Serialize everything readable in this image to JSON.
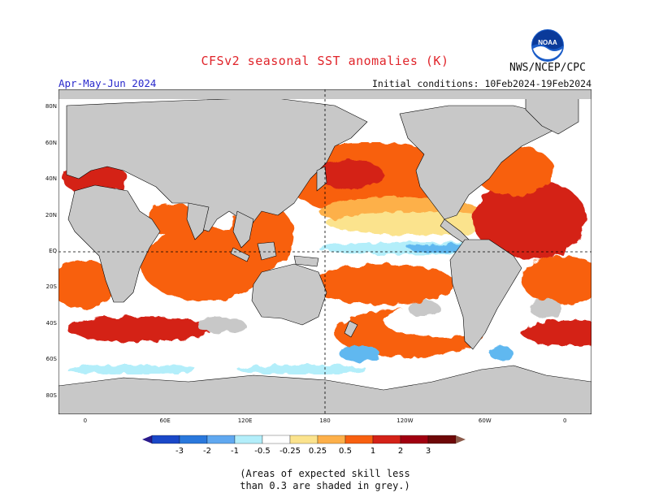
{
  "header": {
    "title": "CFSv2 seasonal SST anomalies (K)",
    "agency": "NWS/NCEP/CPC",
    "logo_text": "NOAA",
    "period": "Apr-May-Jun 2024",
    "initial_conditions": "Initial conditions: 10Feb2024-19Feb2024"
  },
  "map": {
    "lat_labels": [
      "80N",
      "60N",
      "40N",
      "20N",
      "EQ",
      "20S",
      "40S",
      "60S",
      "80S"
    ],
    "lon_labels": [
      "0",
      "60E",
      "120E",
      "180",
      "120W",
      "60W",
      "0"
    ],
    "lat_values": [
      80,
      60,
      40,
      20,
      0,
      -20,
      -40,
      -60,
      -80
    ],
    "lon_values": [
      0,
      60,
      120,
      180,
      240,
      300,
      360
    ],
    "lon_range": [
      -20,
      380
    ],
    "lat_range": [
      -90,
      90
    ],
    "colors": {
      "land": "#c8c8c8",
      "ocean_neutral": "#ffffff",
      "warm_weak": "#fbe38d",
      "warm_mid": "#fdb04a",
      "warm": "#f86010",
      "warm_strong": "#d42218",
      "warm_extreme": "#a00010",
      "cool_weak": "#b3eefa",
      "cool_mid": "#60b8f0",
      "cool": "#2a78dc"
    }
  },
  "colorbar": {
    "labels": [
      "-3",
      "-2",
      "-1",
      "-0.5",
      "-0.25",
      "0.25",
      "0.5",
      "1",
      "2",
      "3"
    ],
    "colors": [
      "#2a1a8c",
      "#1a48c8",
      "#2a78dc",
      "#60a8f0",
      "#b3eefa",
      "#ffffff",
      "#fbe38d",
      "#fdb04a",
      "#f86010",
      "#d42218",
      "#a00010",
      "#6e0808",
      "#8c5a4a"
    ]
  },
  "note": {
    "line1": "(Areas of expected skill less",
    "line2": "than 0.3 are shaded in grey.)"
  }
}
